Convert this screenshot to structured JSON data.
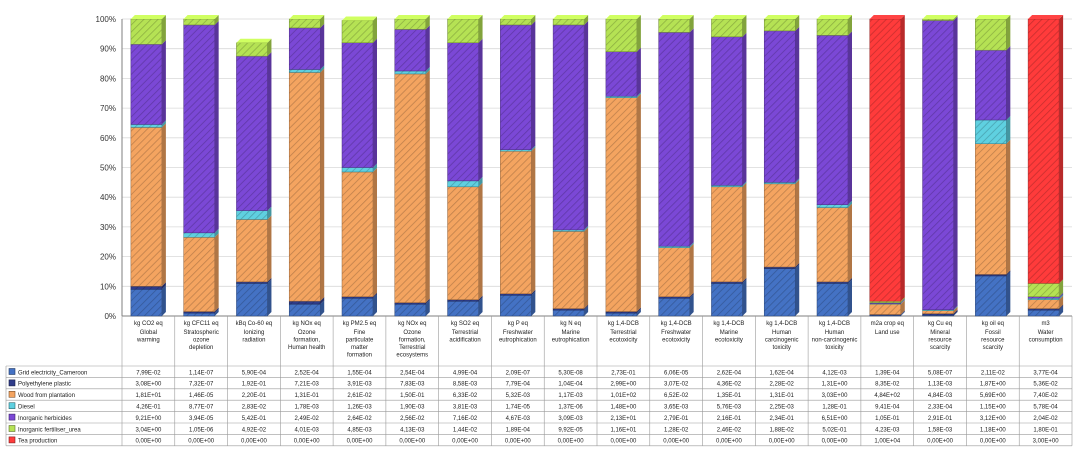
{
  "chart_data": {
    "type": "bar",
    "stacked": true,
    "normalized": true,
    "ylim": [
      0,
      100
    ],
    "yticks": [
      "0%",
      "10%",
      "20%",
      "30%",
      "40%",
      "50%",
      "60%",
      "70%",
      "80%",
      "90%",
      "100%"
    ],
    "grid": true,
    "categories": [
      {
        "unit": "kg CO2 eq",
        "name": "Global warming"
      },
      {
        "unit": "kg CFC11 eq",
        "name": "Stratospheric ozone depletion"
      },
      {
        "unit": "kBq Co-60 eq",
        "name": "Ionizing radiation"
      },
      {
        "unit": "kg NOx eq",
        "name": "Ozone formation, Human health"
      },
      {
        "unit": "kg PM2.5 eq",
        "name": "Fine particulate matter formation"
      },
      {
        "unit": "kg NOx eq",
        "name": "Ozone formation, Terrestrial ecosystems"
      },
      {
        "unit": "kg SO2 eq",
        "name": "Terrestrial acidification"
      },
      {
        "unit": "kg P eq",
        "name": "Freshwater eutrophication"
      },
      {
        "unit": "kg N eq",
        "name": "Marine eutrophication"
      },
      {
        "unit": "kg 1,4-DCB",
        "name": "Terrestrial ecotoxicity"
      },
      {
        "unit": "kg 1,4-DCB",
        "name": "Freshwater ecotoxicity"
      },
      {
        "unit": "kg 1,4-DCB",
        "name": "Marine ecotoxicity"
      },
      {
        "unit": "kg 1,4-DCB",
        "name": "Human carcinogenic toxicity"
      },
      {
        "unit": "kg 1,4-DCB",
        "name": "Human non-carcinogenic toxicity"
      },
      {
        "unit": "m2a crop eq",
        "name": "Land use"
      },
      {
        "unit": "kg Cu eq",
        "name": "Mineral resource scarcity"
      },
      {
        "unit": "kg oil eq",
        "name": "Fossil resource scarcity"
      },
      {
        "unit": "m3",
        "name": "Water consumption"
      }
    ],
    "series": [
      {
        "name": "Grid electricity_Cameroon",
        "color": "#4472c4",
        "stack_percent": [
          9.0,
          1.0,
          11.0,
          4.0,
          6.0,
          4.0,
          5.0,
          7.0,
          2.0,
          1.0,
          6.0,
          11.0,
          16.0,
          11.0,
          0.3,
          0.3,
          13.5,
          2.0
        ],
        "table": [
          "7,99E-02",
          "1,14E-07",
          "5,90E-04",
          "2,52E-04",
          "1,55E-04",
          "2,54E-04",
          "4,99E-04",
          "2,09E-07",
          "5,30E-08",
          "2,73E-01",
          "6,06E-05",
          "2,62E-04",
          "1,62E-04",
          "4,12E-03",
          "1,39E-04",
          "5,08E-07",
          "2,11E-02",
          "3,77E-04"
        ]
      },
      {
        "name": "Polyethylene plastic",
        "color": "#2f3c8a",
        "stack_percent": [
          1.0,
          0.5,
          0.5,
          1.0,
          0.5,
          0.5,
          0.5,
          0.5,
          0.5,
          0.5,
          0.5,
          0.5,
          0.5,
          0.5,
          0.2,
          0.5,
          0.5,
          0.5
        ],
        "table": [
          "3,08E+00",
          "7,32E-07",
          "1,92E-01",
          "7,21E-03",
          "3,91E-03",
          "7,83E-03",
          "8,58E-03",
          "7,79E-04",
          "1,04E-04",
          "2,99E+00",
          "3,07E-02",
          "4,36E-02",
          "2,28E-02",
          "1,31E+00",
          "8,35E-02",
          "1,13E-03",
          "1,87E+00",
          "5,36E-02"
        ]
      },
      {
        "name": "Wood from plantation",
        "color": "#f4a460",
        "stack_percent": [
          53.5,
          25.0,
          21.0,
          77.0,
          42.0,
          77.0,
          38.0,
          48.0,
          26.0,
          72.0,
          16.5,
          32.0,
          28.0,
          25.0,
          3.5,
          1.0,
          44.0,
          3.0
        ],
        "table": [
          "1,81E+01",
          "1,46E-05",
          "2,20E-01",
          "1,31E-01",
          "2,61E-02",
          "1,50E-01",
          "6,33E-02",
          "5,32E-03",
          "1,17E-03",
          "1,01E+02",
          "6,52E-02",
          "1,35E-01",
          "1,31E-01",
          "3,03E+00",
          "4,84E+02",
          "4,84E-03",
          "5,69E+00",
          "7,40E-02"
        ]
      },
      {
        "name": "Diesel",
        "color": "#5fd0e0",
        "stack_percent": [
          1.0,
          1.5,
          3.0,
          1.0,
          1.5,
          1.0,
          2.0,
          0.5,
          0.5,
          0.5,
          0.5,
          0.5,
          0.5,
          1.0,
          0.2,
          0.3,
          8.0,
          0.5
        ],
        "table": [
          "4,26E-01",
          "8,77E-07",
          "2,83E-02",
          "1,78E-03",
          "1,26E-03",
          "1,90E-03",
          "3,81E-03",
          "1,74E-05",
          "1,37E-06",
          "1,48E+00",
          "3,65E-03",
          "5,76E-03",
          "2,25E-03",
          "1,28E-01",
          "9,41E-04",
          "2,33E-04",
          "1,15E+00",
          "5,78E-04"
        ]
      },
      {
        "name": "Inorganic herbicides",
        "color": "#7b48d6",
        "stack_percent": [
          27.0,
          70.0,
          52.0,
          14.0,
          42.0,
          14.0,
          46.5,
          42.0,
          69.0,
          15.0,
          72.0,
          50.0,
          51.0,
          57.0,
          0.3,
          97.4,
          23.5,
          0.5
        ],
        "table": [
          "9,21E+00",
          "3,94E-05",
          "5,42E-01",
          "2,49E-02",
          "2,64E-02",
          "2,56E-02",
          "7,16E-02",
          "4,67E-03",
          "3,09E-03",
          "2,13E+01",
          "2,79E-01",
          "2,16E-01",
          "2,34E-01",
          "6,51E+00",
          "1,05E-01",
          "2,91E-01",
          "3,12E+00",
          "2,04E-02"
        ]
      },
      {
        "name": "Inorganic fertiliser_urea",
        "color": "#b5e254",
        "stack_percent": [
          8.5,
          2.0,
          4.5,
          3.0,
          7.5,
          3.5,
          8.0,
          2.0,
          2.0,
          11.0,
          4.5,
          6.0,
          4.0,
          5.5,
          0.5,
          0.5,
          10.5,
          4.5
        ],
        "table": [
          "3,04E+00",
          "1,05E-06",
          "4,92E-02",
          "4,01E-03",
          "4,85E-03",
          "4,13E-03",
          "1,44E-02",
          "1,89E-04",
          "9,92E-05",
          "1,16E+01",
          "1,28E-02",
          "2,46E-02",
          "1,88E-02",
          "5,02E-01",
          "4,23E-03",
          "1,58E-03",
          "1,18E+00",
          "1,80E-01"
        ]
      },
      {
        "name": "Tea production",
        "color": "#ff3b3b",
        "stack_percent": [
          0.0,
          0.0,
          0.0,
          0.0,
          0.0,
          0.0,
          0.0,
          0.0,
          0.0,
          0.0,
          0.0,
          0.0,
          0.0,
          0.0,
          95.0,
          0.0,
          0.0,
          89.0
        ],
        "table": [
          "0,00E+00",
          "0,00E+00",
          "0,00E+00",
          "0,00E+00",
          "0,00E+00",
          "0,00E+00",
          "0,00E+00",
          "0,00E+00",
          "0,00E+00",
          "0,00E+00",
          "0,00E+00",
          "0,00E+00",
          "0,00E+00",
          "0,00E+00",
          "1,00E+04",
          "0,00E+00",
          "0,00E+00",
          "3,00E+00"
        ]
      }
    ]
  }
}
